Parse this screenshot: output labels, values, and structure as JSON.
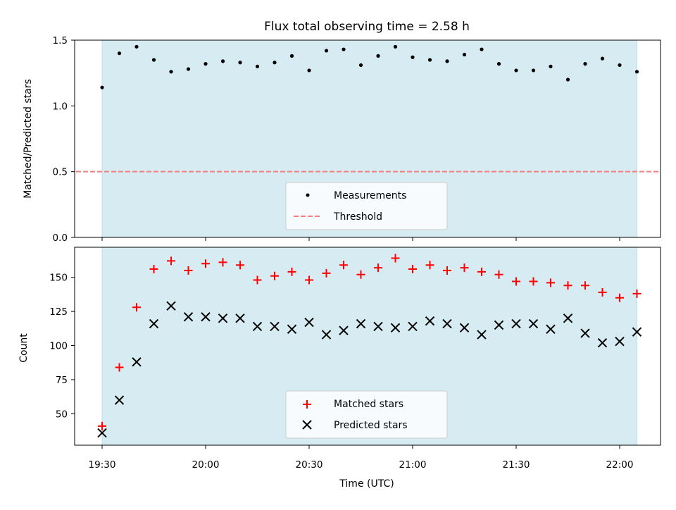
{
  "chart_data": [
    {
      "type": "scatter",
      "title": "Flux total observing time = 2.58 h",
      "xlabel": "",
      "ylabel": "Matched/Predicted stars",
      "ylim": [
        0,
        1.5
      ],
      "yticks": [
        "0.0",
        "0.5",
        "1.0",
        "1.5"
      ],
      "x_ticks": [
        "19:30",
        "20:00",
        "20:30",
        "21:00",
        "21:30",
        "22:00"
      ],
      "observing_window": [
        "19:30",
        "22:05"
      ],
      "threshold": 0.5,
      "legend": {
        "placement": "lower-center",
        "entries": [
          "Measurements",
          "Threshold"
        ]
      },
      "colors": {
        "span": "#add8e6",
        "measurements": "#000000",
        "threshold": "#f08080"
      },
      "series": [
        {
          "name": "Measurements",
          "x": [
            "19:30",
            "19:35",
            "19:40",
            "19:45",
            "19:50",
            "19:55",
            "20:00",
            "20:05",
            "20:10",
            "20:15",
            "20:20",
            "20:25",
            "20:30",
            "20:35",
            "20:40",
            "20:45",
            "20:50",
            "20:55",
            "21:00",
            "21:05",
            "21:10",
            "21:15",
            "21:20",
            "21:25",
            "21:30",
            "21:35",
            "21:40",
            "21:45",
            "21:50",
            "21:55",
            "22:00",
            "22:05"
          ],
          "values": [
            1.14,
            1.4,
            1.45,
            1.35,
            1.26,
            1.28,
            1.32,
            1.34,
            1.33,
            1.3,
            1.33,
            1.38,
            1.27,
            1.42,
            1.43,
            1.31,
            1.38,
            1.45,
            1.37,
            1.35,
            1.34,
            1.39,
            1.43,
            1.32,
            1.27,
            1.27,
            1.3,
            1.2,
            1.32,
            1.36,
            1.31,
            1.26
          ]
        }
      ]
    },
    {
      "type": "scatter",
      "title": "",
      "xlabel": "Time (UTC)",
      "ylabel": "Count",
      "ylim": [
        27,
        172
      ],
      "yticks": [
        "50",
        "75",
        "100",
        "125",
        "150"
      ],
      "x_ticks": [
        "19:30",
        "20:00",
        "20:30",
        "21:00",
        "21:30",
        "22:00"
      ],
      "legend": {
        "placement": "lower-center",
        "entries": [
          "Matched stars",
          "Predicted stars"
        ]
      },
      "colors": {
        "matched": "#ff0000",
        "predicted": "#000000",
        "span": "#add8e6"
      },
      "series": [
        {
          "name": "Matched stars",
          "x": [
            "19:30",
            "19:35",
            "19:40",
            "19:45",
            "19:50",
            "19:55",
            "20:00",
            "20:05",
            "20:10",
            "20:15",
            "20:20",
            "20:25",
            "20:30",
            "20:35",
            "20:40",
            "20:45",
            "20:50",
            "20:55",
            "21:00",
            "21:05",
            "21:10",
            "21:15",
            "21:20",
            "21:25",
            "21:30",
            "21:35",
            "21:40",
            "21:45",
            "21:50",
            "21:55",
            "22:00",
            "22:05"
          ],
          "values": [
            41,
            84,
            128,
            156,
            162,
            155,
            160,
            161,
            159,
            148,
            151,
            154,
            148,
            153,
            159,
            152,
            157,
            164,
            156,
            159,
            155,
            157,
            154,
            152,
            147,
            147,
            146,
            144,
            144,
            139,
            135,
            138
          ]
        },
        {
          "name": "Predicted stars",
          "x": [
            "19:30",
            "19:35",
            "19:40",
            "19:45",
            "19:50",
            "19:55",
            "20:00",
            "20:05",
            "20:10",
            "20:15",
            "20:20",
            "20:25",
            "20:30",
            "20:35",
            "20:40",
            "20:45",
            "20:50",
            "20:55",
            "21:00",
            "21:05",
            "21:10",
            "21:15",
            "21:20",
            "21:25",
            "21:30",
            "21:35",
            "21:40",
            "21:45",
            "21:50",
            "21:55",
            "22:00",
            "22:05"
          ],
          "values": [
            36,
            60,
            88,
            116,
            129,
            121,
            121,
            120,
            120,
            114,
            114,
            112,
            117,
            108,
            111,
            116,
            114,
            113,
            114,
            118,
            116,
            113,
            108,
            115,
            116,
            116,
            112,
            120,
            109,
            102,
            103,
            110
          ]
        }
      ]
    }
  ]
}
